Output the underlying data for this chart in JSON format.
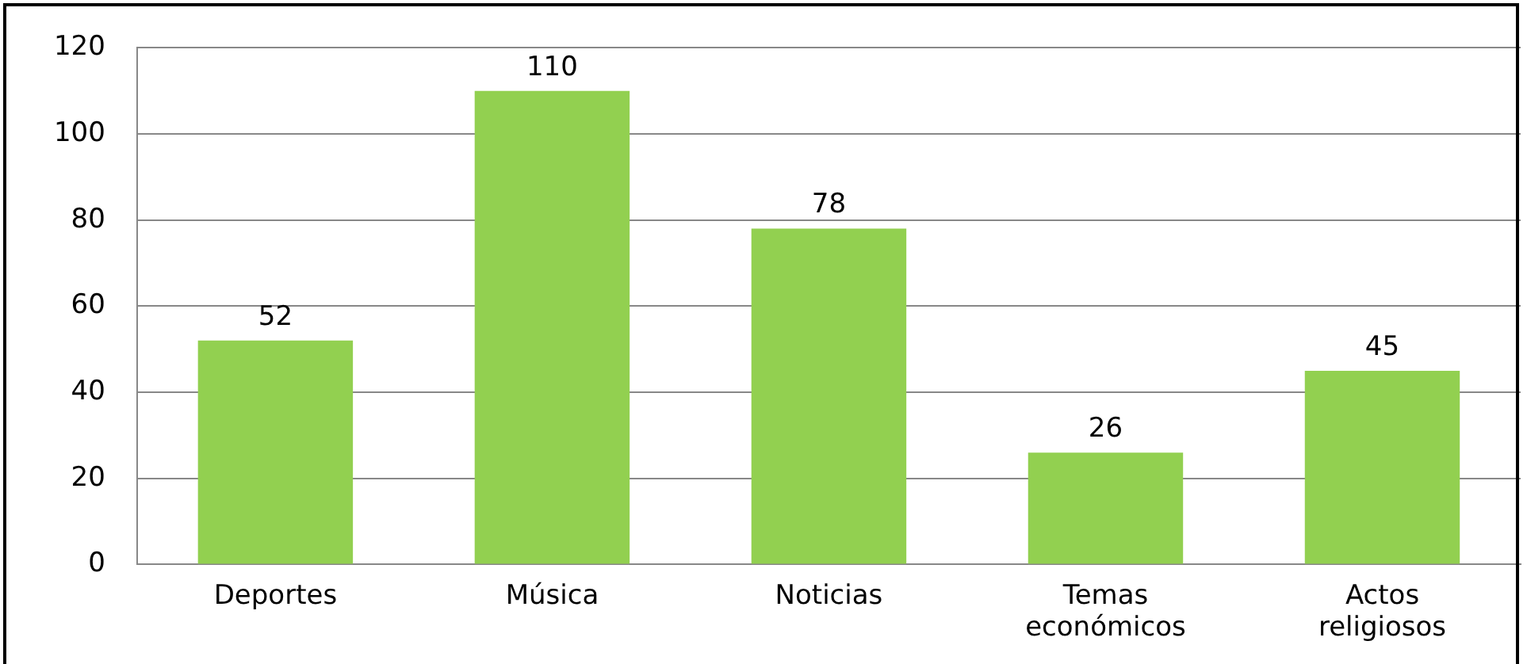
{
  "chart_data": {
    "type": "bar",
    "categories": [
      "Deportes",
      "Música",
      "Noticias",
      "Temas económicos",
      "Actos religiosos"
    ],
    "values": [
      52,
      110,
      78,
      26,
      45
    ],
    "color": "#92d050",
    "ylim": [
      0,
      120
    ],
    "yticks": [
      0,
      20,
      40,
      60,
      80,
      100,
      120
    ],
    "grid": "y",
    "legend": false,
    "data_labels": true
  }
}
